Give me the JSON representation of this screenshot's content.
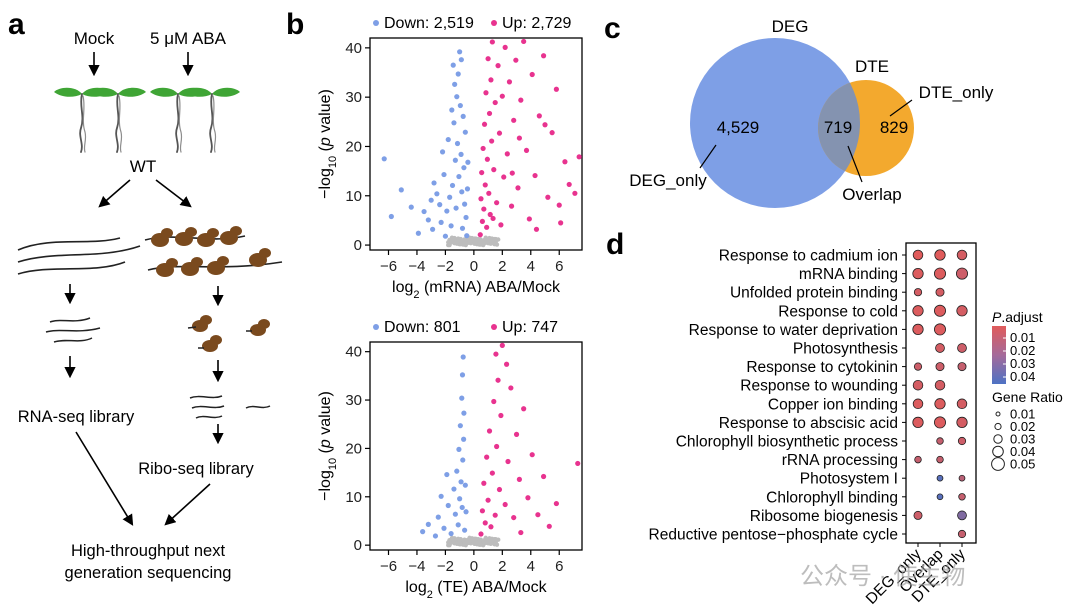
{
  "panels": {
    "a": "a",
    "b": "b",
    "c": "c",
    "d": "d"
  },
  "workflow": {
    "mock": "Mock",
    "aba": "5 μM ABA",
    "wt": "WT",
    "rna_lib": "RNA-seq library",
    "ribo_lib": "Ribo-seq library",
    "hts_line1": "High-throughput next",
    "hts_line2": "generation sequencing"
  },
  "chart_data": [
    {
      "type": "scatter",
      "name": "volcano-mRNA",
      "title": "",
      "legend": {
        "down": "Down: 2,519",
        "up": "Up: 2,729"
      },
      "xlabel": "log2 (mRNA) ABA/Mock",
      "xlabel_pre": "log",
      "xlabel_sub": "2",
      "xlabel_post": " (mRNA) ABA/Mock",
      "ylabel_pre": "−log",
      "ylabel_sub": "10",
      "ylabel_post": " (p value)",
      "xlim": [
        -7.3,
        7.6
      ],
      "ylim": [
        -1,
        42
      ],
      "xticks": [
        -6,
        -4,
        -2,
        0,
        2,
        4,
        6
      ],
      "xtick_labels": [
        "−6",
        "−4",
        "−2",
        "0",
        "2",
        "4",
        "6"
      ],
      "yticks": [
        0,
        10,
        20,
        30,
        40
      ],
      "ytick_labels": [
        "0",
        "10",
        "20",
        "30",
        "40"
      ],
      "colors": {
        "down": "#7E9FE6",
        "up": "#E8338F",
        "ns": "#BDBDBD"
      },
      "down_points": [
        [
          -6.3,
          17.5
        ],
        [
          -5.8,
          5.8
        ],
        [
          -5.1,
          11.2
        ],
        [
          -4.4,
          7.7
        ],
        [
          -3.9,
          2.4
        ],
        [
          -3.5,
          6.8
        ],
        [
          -3.2,
          5.1
        ],
        [
          -2.9,
          3.2
        ],
        [
          -2.8,
          12.6
        ],
        [
          -2.6,
          10.4
        ],
        [
          -2.4,
          8.2
        ],
        [
          -2.3,
          4.6
        ],
        [
          -2.1,
          14.3
        ],
        [
          -2.0,
          1.8
        ],
        [
          -1.9,
          6.9
        ],
        [
          -1.8,
          21.4
        ],
        [
          -1.7,
          9.7
        ],
        [
          -1.6,
          3.9
        ],
        [
          -1.5,
          12.1
        ],
        [
          -1.4,
          24.8
        ],
        [
          -1.3,
          17.2
        ],
        [
          -1.25,
          7.5
        ],
        [
          -1.2,
          30.1
        ],
        [
          -1.15,
          20.6
        ],
        [
          -1.1,
          34.7
        ],
        [
          -1.05,
          13.9
        ],
        [
          -1.0,
          39.2
        ],
        [
          -0.95,
          28.3
        ],
        [
          -0.9,
          18.4
        ],
        [
          -0.85,
          10.8
        ],
        [
          -0.8,
          3.4
        ],
        [
          -0.75,
          26.1
        ],
        [
          -0.7,
          15.7
        ],
        [
          -0.65,
          8.3
        ],
        [
          -0.6,
          22.9
        ],
        [
          -0.55,
          5.6
        ],
        [
          -0.5,
          1.9
        ],
        [
          -0.45,
          11.4
        ],
        [
          -0.42,
          16.8
        ],
        [
          -1.35,
          32.6
        ],
        [
          -1.45,
          36.5
        ],
        [
          -1.55,
          27.4
        ],
        [
          -0.88,
          37.6
        ],
        [
          -2.2,
          18.9
        ],
        [
          -3.0,
          9.1
        ]
      ],
      "up_points": [
        [
          0.45,
          2.1
        ],
        [
          0.5,
          9.4
        ],
        [
          0.55,
          14.7
        ],
        [
          0.6,
          4.8
        ],
        [
          0.65,
          19.6
        ],
        [
          0.7,
          7.3
        ],
        [
          0.75,
          24.5
        ],
        [
          0.8,
          12.2
        ],
        [
          0.85,
          30.9
        ],
        [
          0.9,
          3.6
        ],
        [
          0.95,
          17.4
        ],
        [
          1.0,
          37.8
        ],
        [
          1.05,
          10.5
        ],
        [
          1.1,
          26.7
        ],
        [
          1.15,
          6.2
        ],
        [
          1.2,
          33.5
        ],
        [
          1.25,
          21.1
        ],
        [
          1.3,
          41.2
        ],
        [
          1.4,
          15.3
        ],
        [
          1.5,
          28.9
        ],
        [
          1.6,
          8.6
        ],
        [
          1.7,
          36.4
        ],
        [
          1.8,
          22.7
        ],
        [
          1.9,
          4.1
        ],
        [
          2.0,
          30.2
        ],
        [
          2.1,
          13.8
        ],
        [
          2.2,
          40.1
        ],
        [
          2.35,
          18.5
        ],
        [
          2.5,
          33.1
        ],
        [
          2.65,
          7.9
        ],
        [
          2.8,
          25.3
        ],
        [
          2.95,
          37.5
        ],
        [
          3.1,
          11.6
        ],
        [
          3.3,
          29.4
        ],
        [
          3.5,
          41.3
        ],
        [
          3.7,
          19.2
        ],
        [
          3.9,
          5.3
        ],
        [
          4.1,
          34.6
        ],
        [
          4.3,
          14.1
        ],
        [
          4.6,
          26.2
        ],
        [
          4.9,
          38.4
        ],
        [
          5.2,
          9.7
        ],
        [
          5.5,
          22.8
        ],
        [
          5.8,
          31.6
        ],
        [
          6.1,
          4.5
        ],
        [
          6.4,
          16.9
        ],
        [
          6.7,
          12.3
        ],
        [
          7.1,
          10.5
        ],
        [
          7.4,
          17.9
        ],
        [
          5.0,
          24.4
        ],
        [
          3.2,
          21.7
        ],
        [
          2.7,
          14.6
        ],
        [
          1.35,
          5.4
        ],
        [
          4.4,
          3.2
        ],
        [
          6.0,
          8.1
        ]
      ]
    },
    {
      "type": "scatter",
      "name": "volcano-TE",
      "title": "",
      "legend": {
        "down": "Down: 801",
        "up": "Up: 747"
      },
      "xlabel": "log2 (TE) ABA/Mock",
      "xlabel_pre": "log",
      "xlabel_sub": "2",
      "xlabel_post": " (TE) ABA/Mock",
      "ylabel_pre": "−log",
      "ylabel_sub": "10",
      "ylabel_post": " (p value)",
      "xlim": [
        -7.3,
        7.6
      ],
      "ylim": [
        -1,
        42
      ],
      "xticks": [
        -6,
        -4,
        -2,
        0,
        2,
        4,
        6
      ],
      "xtick_labels": [
        "−6",
        "−4",
        "−2",
        "0",
        "2",
        "4",
        "6"
      ],
      "yticks": [
        0,
        10,
        20,
        30,
        40
      ],
      "ytick_labels": [
        "0",
        "10",
        "20",
        "30",
        "40"
      ],
      "colors": {
        "down": "#7E9FE6",
        "up": "#E8338F",
        "ns": "#BDBDBD"
      },
      "down_points": [
        [
          -3.6,
          2.8
        ],
        [
          -3.2,
          4.3
        ],
        [
          -2.7,
          1.9
        ],
        [
          -2.5,
          5.8
        ],
        [
          -2.1,
          3.5
        ],
        [
          -1.8,
          8.2
        ],
        [
          -1.6,
          2.4
        ],
        [
          -1.4,
          11.6
        ],
        [
          -1.3,
          6.4
        ],
        [
          -1.2,
          15.3
        ],
        [
          -1.1,
          4.2
        ],
        [
          -1.05,
          19.8
        ],
        [
          -1.0,
          9.6
        ],
        [
          -0.95,
          24.7
        ],
        [
          -0.9,
          13.1
        ],
        [
          -0.85,
          30.4
        ],
        [
          -0.82,
          7.8
        ],
        [
          -0.8,
          35.2
        ],
        [
          -0.78,
          17.6
        ],
        [
          -0.75,
          38.9
        ],
        [
          -0.72,
          21.9
        ],
        [
          -0.7,
          27.3
        ],
        [
          -0.65,
          3.1
        ],
        [
          -0.6,
          12.4
        ],
        [
          -0.55,
          6.9
        ],
        [
          -2.3,
          10.1
        ],
        [
          -1.9,
          14.6
        ]
      ],
      "up_points": [
        [
          0.5,
          2.3
        ],
        [
          0.6,
          7.1
        ],
        [
          0.7,
          12.8
        ],
        [
          0.8,
          4.6
        ],
        [
          0.9,
          18.2
        ],
        [
          1.0,
          9.3
        ],
        [
          1.1,
          23.6
        ],
        [
          1.2,
          3.8
        ],
        [
          1.3,
          14.9
        ],
        [
          1.4,
          29.7
        ],
        [
          1.5,
          6.2
        ],
        [
          1.6,
          20.4
        ],
        [
          1.7,
          34.1
        ],
        [
          1.8,
          11.5
        ],
        [
          1.9,
          26.8
        ],
        [
          2.0,
          41.3
        ],
        [
          2.2,
          8.4
        ],
        [
          2.4,
          17.3
        ],
        [
          2.6,
          32.5
        ],
        [
          2.8,
          5.7
        ],
        [
          3.0,
          22.9
        ],
        [
          3.2,
          13.6
        ],
        [
          3.5,
          28.2
        ],
        [
          3.8,
          9.8
        ],
        [
          4.1,
          18.7
        ],
        [
          4.5,
          6.3
        ],
        [
          4.9,
          14.2
        ],
        [
          5.3,
          3.9
        ],
        [
          5.8,
          8.6
        ],
        [
          7.3,
          16.9
        ],
        [
          2.3,
          37.4
        ],
        [
          1.55,
          39.5
        ],
        [
          3.3,
          2.6
        ]
      ]
    },
    {
      "type": "venn",
      "name": "venn-deg-dte",
      "sets": [
        {
          "name": "DEG",
          "only_label": "DEG_only",
          "only_count": "4,529",
          "color": "#7E9FE6"
        },
        {
          "name": "DTE",
          "only_label": "DTE_only",
          "only_count": "829",
          "color": "#F3A92E"
        }
      ],
      "overlap": {
        "label": "Overlap",
        "count": "719",
        "color": "#8493B0"
      }
    },
    {
      "type": "dotplot",
      "name": "go-enrichment",
      "x_categories": [
        "DEG_only",
        "Overlap",
        "DTE_only"
      ],
      "y_categories": [
        "Response to cadmium ion",
        "mRNA binding",
        "Unfolded protein binding",
        "Response to cold",
        "Response to water deprivation",
        "Photosynthesis",
        "Response to cytokinin",
        "Response to wounding",
        "Copper ion binding",
        "Response to abscisic acid",
        "Chlorophyll biosynthetic process",
        "rRNA processing",
        "Photosystem I",
        "Chlorophyll binding",
        "Ribosome biogenesis",
        "Reductive pentose−phosphate cycle"
      ],
      "points": [
        {
          "y": "Response to cadmium ion",
          "x": "DEG_only",
          "ratio": 0.04,
          "padj": 0.005
        },
        {
          "y": "Response to cadmium ion",
          "x": "Overlap",
          "ratio": 0.045,
          "padj": 0.005
        },
        {
          "y": "Response to cadmium ion",
          "x": "DTE_only",
          "ratio": 0.04,
          "padj": 0.008
        },
        {
          "y": "mRNA binding",
          "x": "DEG_only",
          "ratio": 0.045,
          "padj": 0.006
        },
        {
          "y": "mRNA binding",
          "x": "Overlap",
          "ratio": 0.05,
          "padj": 0.006
        },
        {
          "y": "mRNA binding",
          "x": "DTE_only",
          "ratio": 0.05,
          "padj": 0.01
        },
        {
          "y": "Unfolded protein binding",
          "x": "DEG_only",
          "ratio": 0.025,
          "padj": 0.008
        },
        {
          "y": "Unfolded protein binding",
          "x": "Overlap",
          "ratio": 0.03,
          "padj": 0.008
        },
        {
          "y": "Response to cold",
          "x": "DEG_only",
          "ratio": 0.045,
          "padj": 0.006
        },
        {
          "y": "Response to cold",
          "x": "Overlap",
          "ratio": 0.05,
          "padj": 0.006
        },
        {
          "y": "Response to cold",
          "x": "DTE_only",
          "ratio": 0.045,
          "padj": 0.008
        },
        {
          "y": "Response to water deprivation",
          "x": "DEG_only",
          "ratio": 0.045,
          "padj": 0.006
        },
        {
          "y": "Response to water deprivation",
          "x": "Overlap",
          "ratio": 0.05,
          "padj": 0.006
        },
        {
          "y": "Photosynthesis",
          "x": "Overlap",
          "ratio": 0.035,
          "padj": 0.008
        },
        {
          "y": "Photosynthesis",
          "x": "DTE_only",
          "ratio": 0.035,
          "padj": 0.01
        },
        {
          "y": "Response to cytokinin",
          "x": "DEG_only",
          "ratio": 0.025,
          "padj": 0.01
        },
        {
          "y": "Response to cytokinin",
          "x": "Overlap",
          "ratio": 0.03,
          "padj": 0.01
        },
        {
          "y": "Response to cytokinin",
          "x": "DTE_only",
          "ratio": 0.03,
          "padj": 0.012
        },
        {
          "y": "Response to wounding",
          "x": "DEG_only",
          "ratio": 0.04,
          "padj": 0.008
        },
        {
          "y": "Response to wounding",
          "x": "Overlap",
          "ratio": 0.04,
          "padj": 0.008
        },
        {
          "y": "Copper ion binding",
          "x": "DEG_only",
          "ratio": 0.04,
          "padj": 0.006
        },
        {
          "y": "Copper ion binding",
          "x": "Overlap",
          "ratio": 0.045,
          "padj": 0.006
        },
        {
          "y": "Copper ion binding",
          "x": "DTE_only",
          "ratio": 0.04,
          "padj": 0.008
        },
        {
          "y": "Response to abscisic acid",
          "x": "DEG_only",
          "ratio": 0.045,
          "padj": 0.006
        },
        {
          "y": "Response to abscisic acid",
          "x": "Overlap",
          "ratio": 0.05,
          "padj": 0.006
        },
        {
          "y": "Response to abscisic acid",
          "x": "DTE_only",
          "ratio": 0.045,
          "padj": 0.008
        },
        {
          "y": "Chlorophyll biosynthetic process",
          "x": "Overlap",
          "ratio": 0.02,
          "padj": 0.012
        },
        {
          "y": "Chlorophyll biosynthetic process",
          "x": "DTE_only",
          "ratio": 0.025,
          "padj": 0.01
        },
        {
          "y": "rRNA processing",
          "x": "DEG_only",
          "ratio": 0.02,
          "padj": 0.012
        },
        {
          "y": "rRNA processing",
          "x": "Overlap",
          "ratio": 0.02,
          "padj": 0.012
        },
        {
          "y": "Photosystem I",
          "x": "Overlap",
          "ratio": 0.015,
          "padj": 0.04
        },
        {
          "y": "Photosystem I",
          "x": "DTE_only",
          "ratio": 0.015,
          "padj": 0.015
        },
        {
          "y": "Chlorophyll binding",
          "x": "Overlap",
          "ratio": 0.015,
          "padj": 0.04
        },
        {
          "y": "Chlorophyll binding",
          "x": "DTE_only",
          "ratio": 0.02,
          "padj": 0.012
        },
        {
          "y": "Ribosome biogenesis",
          "x": "DEG_only",
          "ratio": 0.03,
          "padj": 0.01
        },
        {
          "y": "Ribosome biogenesis",
          "x": "DTE_only",
          "ratio": 0.035,
          "padj": 0.03
        },
        {
          "y": "Reductive pentose−phosphate cycle",
          "x": "DTE_only",
          "ratio": 0.025,
          "padj": 0.012
        }
      ],
      "color_legend": {
        "title_pre": "P",
        "title_post": ".adjust",
        "ticks": [
          "0.01",
          "0.02",
          "0.03",
          "0.04"
        ],
        "low_color": "#E05B5B",
        "high_color": "#4D72C4"
      },
      "size_legend": {
        "title": "Gene Ratio",
        "ticks": [
          "0.01",
          "0.02",
          "0.03",
          "0.04",
          "0.05"
        ]
      }
    }
  ],
  "watermark": "公众号 · 使生物"
}
